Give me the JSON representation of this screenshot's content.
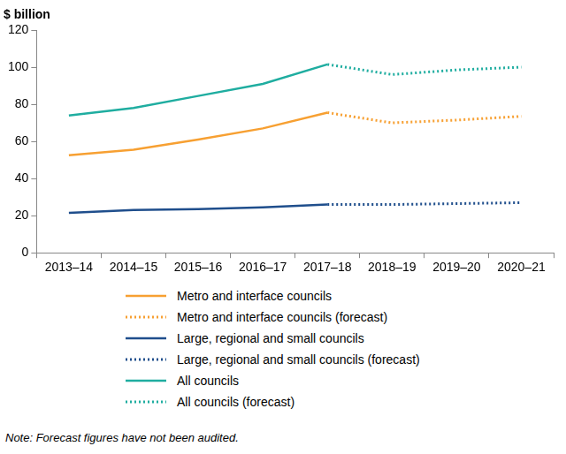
{
  "chart_data": {
    "type": "line",
    "y_label": "$ billion",
    "note": "Note: Forecast figures have not been audited.",
    "categories": [
      "2013–14",
      "2014–15",
      "2015–16",
      "2016–17",
      "2017–18",
      "2018–19",
      "2019–20",
      "2020–21"
    ],
    "series": [
      {
        "name": "Metro and interface councils",
        "color": "#f7a032",
        "line_style": "solid",
        "values": [
          52.5,
          55.5,
          61,
          67,
          75.5,
          null,
          null,
          null
        ]
      },
      {
        "name": "Metro and interface councils (forecast)",
        "color": "#f7a032",
        "line_style": "dotted",
        "values": [
          null,
          null,
          null,
          null,
          75.5,
          70,
          71.5,
          73.5
        ]
      },
      {
        "name": "Large, regional and small councils",
        "color": "#1f4e8c",
        "line_style": "solid",
        "values": [
          21.5,
          23,
          23.5,
          24.5,
          26,
          null,
          null,
          null
        ]
      },
      {
        "name": "Large, regional and small councils (forecast)",
        "color": "#1f4e8c",
        "line_style": "dotted",
        "values": [
          null,
          null,
          null,
          null,
          26,
          26,
          26.5,
          27
        ]
      },
      {
        "name": "All councils",
        "color": "#1fada0",
        "line_style": "solid",
        "values": [
          74,
          78,
          84.5,
          91,
          101.5,
          null,
          null,
          null
        ]
      },
      {
        "name": "All councils (forecast)",
        "color": "#1fada0",
        "line_style": "dotted",
        "values": [
          null,
          null,
          null,
          null,
          101.5,
          96,
          98.5,
          100
        ]
      }
    ],
    "ylim": [
      0,
      120
    ],
    "yticks": [
      0,
      20,
      40,
      60,
      80,
      100,
      120
    ],
    "grid": false,
    "legend": "bottom"
  }
}
